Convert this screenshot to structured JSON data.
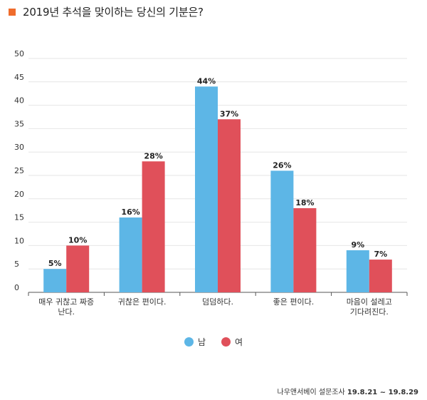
{
  "title": "2019년 추석을 맞이하는 당신의 기분은?",
  "source": {
    "org": "나우앤서베이 설문조사",
    "dates": "19.8.21 ~ 19.8.29"
  },
  "colors": {
    "title_marker": "#ef6c2c",
    "male": "#5db6e6",
    "female": "#e0505a",
    "grid": "#e6e6e6",
    "axis": "#555555"
  },
  "chart_data": {
    "type": "bar",
    "title": "",
    "xlabel": "",
    "ylabel": "",
    "ylim": [
      0,
      50
    ],
    "yticks": [
      0,
      5,
      10,
      15,
      20,
      25,
      30,
      35,
      40,
      45,
      50
    ],
    "grid": true,
    "legend_position": "bottom-center",
    "categories": [
      [
        "매우 귀찮고 짜증",
        "난다."
      ],
      [
        "귀찮은 편이다."
      ],
      [
        "덤덤하다."
      ],
      [
        "좋은 편이다."
      ],
      [
        "마음이 설레고",
        "기다려진다."
      ]
    ],
    "series": [
      {
        "name": "남",
        "color": "#5db6e6",
        "values": [
          5,
          16,
          44,
          26,
          9
        ],
        "labels": [
          "5%",
          "16%",
          "44%",
          "26%",
          "9%"
        ]
      },
      {
        "name": "여",
        "color": "#e0505a",
        "values": [
          10,
          28,
          37,
          18,
          7
        ],
        "labels": [
          "10%",
          "28%",
          "37%",
          "18%",
          "7%"
        ]
      }
    ]
  }
}
